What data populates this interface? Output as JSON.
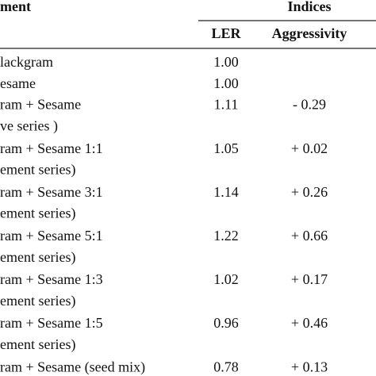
{
  "table": {
    "header": {
      "treatment": "ment",
      "group": "Indices",
      "ler": "LER",
      "aggressivity": "Aggressivity"
    },
    "rows": [
      {
        "treatment": [
          "lackgram"
        ],
        "ler": "1.00"
      },
      {
        "treatment": [
          "esame"
        ],
        "ler": "1.00"
      },
      {
        "treatment": [
          "ram + Sesame",
          "ve series )"
        ],
        "ler": "1.11",
        "aggressivity": "- 0.29"
      },
      {
        "treatment": [
          "ram + Sesame 1:1",
          "ement series)"
        ],
        "ler": "1.05",
        "aggressivity": "+ 0.02"
      },
      {
        "treatment": [
          "ram + Sesame 3:1",
          "ement series)"
        ],
        "ler": "1.14",
        "aggressivity": "+ 0.26"
      },
      {
        "treatment": [
          "ram + Sesame 5:1",
          "ement series)"
        ],
        "ler": "1.22",
        "aggressivity": "+ 0.66"
      },
      {
        "treatment": [
          "ram + Sesame 1:3",
          "ement series)"
        ],
        "ler": "1.02",
        "aggressivity": "+ 0.17"
      },
      {
        "treatment": [
          "ram + Sesame 1:5",
          "ement series)"
        ],
        "ler": "0.96",
        "aggressivity": "+ 0.46"
      },
      {
        "treatment": [
          "ram + Sesame (seed mix)"
        ],
        "ler": "0.78",
        "aggressivity": "+ 0.13"
      }
    ]
  }
}
